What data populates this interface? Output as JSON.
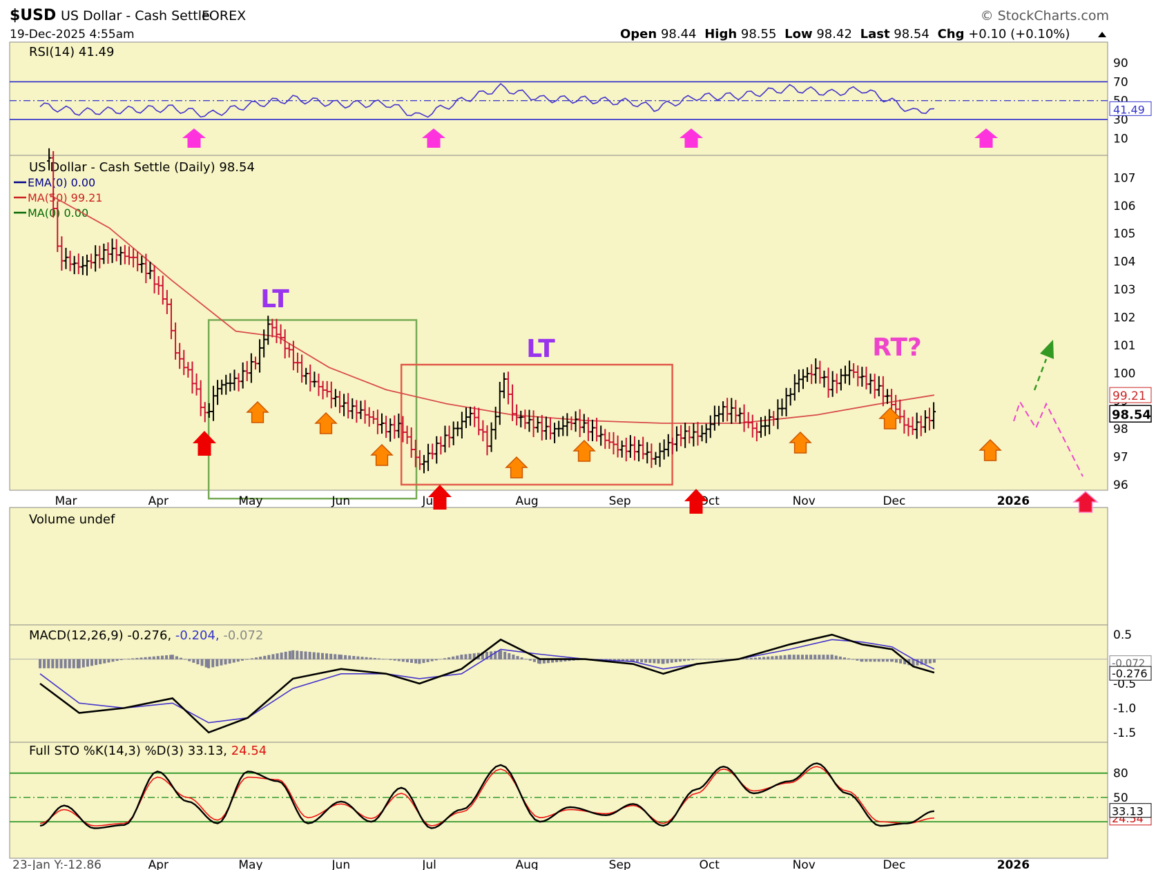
{
  "header": {
    "symbol": "$USD",
    "description": "US Dollar - Cash Settle",
    "exchange": "FOREX",
    "brand": "StockCharts.com",
    "datetime": "19-Dec-2025 4:55am",
    "open_label": "Open",
    "open": "98.44",
    "high_label": "High",
    "high": "98.55",
    "low_label": "Low",
    "low": "98.42",
    "last_label": "Last",
    "last": "98.54",
    "chg_label": "Chg",
    "chg": "+0.10 (+0.10%)"
  },
  "colors": {
    "panel_bg": "#f7f5c5",
    "up_bar": "#000000",
    "down_bar": "#cc1133",
    "ma50": "#d84b4b",
    "rsi_line": "#4433cc",
    "box_green": "#77aa55",
    "box_red": "#e25a4a",
    "annotation_purple": "#9933ee",
    "annotation_pink": "#ee44cc",
    "arrow_magenta": "#ff33dd",
    "arrow_red": "#ee0000",
    "arrow_orange": "#ff8800"
  },
  "chart_data": [
    {
      "type": "line",
      "name": "rsi",
      "label": "RSI(14) 41.49",
      "y_ticks": [
        90,
        70,
        50,
        30,
        10
      ],
      "ylim": [
        0,
        100
      ],
      "reference_lines": [
        70,
        50,
        30
      ],
      "last_value": "41.49",
      "x": [
        "Feb 25",
        "Mar 10",
        "Mar 25",
        "Apr 10",
        "Apr 22",
        "May 5",
        "May 20",
        "Jun 5",
        "Jun 20",
        "Jul 1",
        "Jul 15",
        "Jul 28",
        "Aug 10",
        "Aug 25",
        "Sep 10",
        "Sep 17",
        "Oct 1",
        "Oct 15",
        "Nov 1",
        "Nov 15",
        "Nov 25",
        "Dec 5",
        "Dec 12",
        "Dec 19"
      ],
      "y": [
        45,
        38,
        40,
        42,
        35,
        45,
        52,
        46,
        47,
        33,
        50,
        64,
        52,
        51,
        48,
        42,
        54,
        55,
        63,
        58,
        62,
        49,
        38,
        41.5
      ]
    },
    {
      "type": "line",
      "name": "price",
      "label": "US Dollar - Cash Settle (Daily) 98.54",
      "legend": [
        {
          "name": "EMA(0) 0.00",
          "color": "#000088"
        },
        {
          "name": "MA(50) 99.21",
          "color": "#cc2222"
        },
        {
          "name": "MA(0) 0.00",
          "color": "#006600"
        }
      ],
      "y_ticks": [
        107,
        106,
        105,
        104,
        103,
        102,
        101,
        100,
        99,
        98,
        97,
        96
      ],
      "ylim": [
        95.8,
        107.8
      ],
      "x_ticks": [
        "Mar",
        "Apr",
        "May",
        "Jun",
        "Jul",
        "Aug",
        "Sep",
        "Oct",
        "Nov",
        "Dec",
        "2026"
      ],
      "last_value": "98.54",
      "ma_value": "99.21",
      "price_x": [
        "Feb 28",
        "Mar 3",
        "Mar 10",
        "Mar 20",
        "Mar 28",
        "Apr 3",
        "Apr 8",
        "Apr 11",
        "Apr 16",
        "Apr 21",
        "Apr 25",
        "May 2",
        "May 8",
        "May 12",
        "May 16",
        "May 23",
        "May 30",
        "Jun 6",
        "Jun 12",
        "Jun 20",
        "Jun 25",
        "Jun 30",
        "Jul 1",
        "Jul 7",
        "Jul 14",
        "Jul 18",
        "Jul 24",
        "Jul 29",
        "Aug 1",
        "Aug 7",
        "Aug 14",
        "Aug 21",
        "Aug 28",
        "Sep 5",
        "Sep 12",
        "Sep 17",
        "Sep 19",
        "Sep 26",
        "Oct 3",
        "Oct 9",
        "Oct 14",
        "Oct 21",
        "Oct 28",
        "Nov 4",
        "Nov 10",
        "Nov 14",
        "Nov 21",
        "Nov 25",
        "Dec 1",
        "Dec 5",
        "Dec 10",
        "Dec 15",
        "Dec 19"
      ],
      "price_y": [
        107.6,
        104.2,
        103.8,
        104.4,
        104.1,
        103.5,
        102.5,
        100.7,
        99.9,
        98.4,
        99.5,
        99.8,
        100.5,
        101.8,
        101.2,
        100.0,
        99.4,
        98.8,
        98.6,
        98.0,
        98.1,
        96.9,
        96.7,
        97.4,
        98.1,
        98.6,
        97.4,
        99.9,
        98.5,
        98.2,
        97.9,
        98.3,
        97.9,
        97.3,
        97.3,
        96.9,
        97.2,
        97.8,
        97.8,
        98.7,
        98.6,
        97.9,
        98.6,
        99.8,
        100.1,
        99.5,
        100.1,
        99.8,
        99.4,
        98.9,
        98.0,
        98.2,
        98.54
      ],
      "ma50_x": [
        "Feb 28",
        "Mar 20",
        "Apr 10",
        "May 1",
        "May 15",
        "Jun 1",
        "Jun 20",
        "Jul 10",
        "Aug 1",
        "Aug 25",
        "Sep 20",
        "Oct 15",
        "Nov 10",
        "Dec 1",
        "Dec 19"
      ],
      "ma50_y": [
        106.4,
        105.2,
        103.3,
        101.5,
        101.3,
        100.2,
        99.4,
        98.9,
        98.5,
        98.3,
        98.2,
        98.2,
        98.5,
        98.9,
        99.21
      ],
      "annotations": [
        "LT",
        "LT",
        "RT?"
      ],
      "boxes": [
        {
          "from": "Apr 22",
          "to": "Jun 30",
          "low": 95.5,
          "high": 101.9,
          "color": "#77aa55"
        },
        {
          "from": "Jun 25",
          "to": "Sep 23",
          "low": 96.0,
          "high": 100.3,
          "color": "#e25a4a"
        }
      ]
    },
    {
      "type": "bar",
      "name": "volume",
      "label": "Volume undef"
    },
    {
      "type": "line",
      "name": "macd",
      "label_main": "MACD(12,26,9) -0.276,",
      "label_signal": " -0.204,",
      "label_hist": " -0.072",
      "y_ticks": [
        "0.5",
        "-0.5",
        "-1.0",
        "-1.5"
      ],
      "ylim": [
        -1.7,
        0.7
      ],
      "last_value": "-0.276",
      "last_value2": "-0.072",
      "x": [
        "Feb 25",
        "Mar 10",
        "Mar 25",
        "Apr 10",
        "Apr 22",
        "May 5",
        "May 20",
        "Jun 5",
        "Jun 20",
        "Jul 1",
        "Jul 15",
        "Jul 28",
        "Aug 10",
        "Aug 25",
        "Sep 10",
        "Sep 20",
        "Oct 1",
        "Oct 15",
        "Nov 1",
        "Nov 15",
        "Nov 25",
        "Dec 5",
        "Dec 12",
        "Dec 19"
      ],
      "macd": [
        -0.5,
        -1.1,
        -1.0,
        -0.8,
        -1.5,
        -1.2,
        -0.4,
        -0.2,
        -0.3,
        -0.5,
        -0.2,
        0.4,
        0.0,
        0.0,
        -0.1,
        -0.3,
        -0.1,
        0.0,
        0.3,
        0.5,
        0.3,
        0.2,
        -0.15,
        -0.276
      ],
      "signal": [
        -0.3,
        -0.9,
        -1.0,
        -0.9,
        -1.3,
        -1.2,
        -0.6,
        -0.3,
        -0.3,
        -0.4,
        -0.3,
        0.2,
        0.1,
        0.0,
        -0.05,
        -0.2,
        -0.1,
        0.0,
        0.2,
        0.4,
        0.35,
        0.25,
        0.0,
        -0.204
      ]
    },
    {
      "type": "line",
      "name": "full_sto",
      "label_main": "Full STO %K(14,3) %D(3) 33.13,",
      "label_d": " 24.54",
      "y_ticks": [
        "80",
        "50"
      ],
      "ylim": [
        0,
        100
      ],
      "reference_lines": [
        80,
        50,
        20
      ],
      "last_value": "33.13",
      "last_value2": "24.54",
      "x_ticks": [
        "23-Jan Y:-12.86",
        "Apr",
        "May",
        "Jun",
        "Jul",
        "Aug",
        "Sep",
        "Oct",
        "Nov",
        "Dec",
        "2026"
      ],
      "x": [
        "Feb 25",
        "Mar 5",
        "Mar 15",
        "Mar 25",
        "Apr 5",
        "Apr 15",
        "Apr 25",
        "May 5",
        "May 15",
        "May 25",
        "Jun 5",
        "Jun 15",
        "Jun 25",
        "Jul 5",
        "Jul 15",
        "Jul 28",
        "Aug 10",
        "Aug 20",
        "Sep 1",
        "Sep 10",
        "Sep 20",
        "Oct 1",
        "Oct 10",
        "Oct 20",
        "Nov 1",
        "Nov 10",
        "Nov 20",
        "Dec 1",
        "Dec 10",
        "Dec 19"
      ],
      "k": [
        15,
        40,
        12,
        16,
        82,
        45,
        18,
        82,
        70,
        18,
        45,
        20,
        62,
        12,
        35,
        90,
        20,
        38,
        28,
        42,
        15,
        60,
        88,
        55,
        70,
        92,
        55,
        15,
        18,
        33.13
      ],
      "d": [
        18,
        35,
        15,
        18,
        75,
        50,
        22,
        75,
        72,
        25,
        42,
        24,
        55,
        15,
        32,
        85,
        25,
        35,
        30,
        40,
        18,
        55,
        85,
        58,
        68,
        88,
        58,
        20,
        18,
        24.54
      ]
    }
  ]
}
